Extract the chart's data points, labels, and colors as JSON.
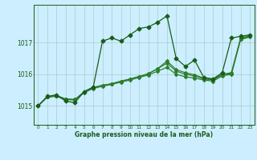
{
  "background_color": "#cceeff",
  "grid_color": "#aacccc",
  "line_color_dark": "#1a5c1a",
  "line_color_light": "#2e7d2e",
  "xlabel": "Graphe pression niveau de la mer (hPa)",
  "yticks": [
    1015,
    1016,
    1017
  ],
  "xlim": [
    -0.5,
    23.5
  ],
  "ylim": [
    1014.4,
    1018.2
  ],
  "series1": [
    1015.0,
    1015.3,
    1015.35,
    1015.15,
    1015.1,
    1015.45,
    1015.6,
    1017.05,
    1017.15,
    1017.05,
    1017.25,
    1017.45,
    1017.5,
    1017.65,
    1017.85,
    1016.5,
    1016.25,
    1016.45,
    1015.9,
    1015.85,
    1016.05,
    1017.15,
    1017.2,
    1017.25
  ],
  "series2": [
    1015.0,
    1015.28,
    1015.3,
    1015.2,
    1015.18,
    1015.42,
    1015.55,
    1015.62,
    1015.68,
    1015.75,
    1015.82,
    1015.9,
    1015.98,
    1016.1,
    1016.22,
    1016.0,
    1015.92,
    1015.88,
    1015.82,
    1015.78,
    1015.95,
    1016.0,
    1017.1,
    1017.18
  ],
  "series3": [
    1015.0,
    1015.28,
    1015.32,
    1015.22,
    1015.2,
    1015.44,
    1015.58,
    1015.65,
    1015.7,
    1015.78,
    1015.85,
    1015.93,
    1016.02,
    1016.18,
    1016.35,
    1016.1,
    1016.0,
    1015.95,
    1015.85,
    1015.82,
    1015.98,
    1016.02,
    1017.12,
    1017.2
  ],
  "series4": [
    1015.0,
    1015.28,
    1015.32,
    1015.22,
    1015.2,
    1015.44,
    1015.58,
    1015.65,
    1015.7,
    1015.78,
    1015.85,
    1015.93,
    1016.02,
    1016.18,
    1016.42,
    1016.15,
    1016.05,
    1015.98,
    1015.88,
    1015.85,
    1016.0,
    1016.05,
    1017.15,
    1017.22
  ]
}
